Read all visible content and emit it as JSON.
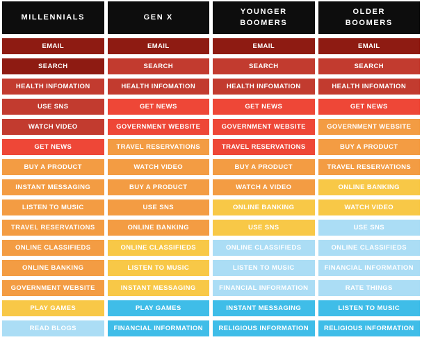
{
  "palette": {
    "header_bg": "#0d0d0d",
    "cell_text": "#ffffff",
    "page_bg": "#ffffff",
    "levels": {
      "dark_red": "#8e1b12",
      "brick_red": "#c23b2f",
      "bright_red": "#ee4737",
      "orange": "#f39c43",
      "yellow": "#f8c847",
      "light_blue": "#abddf5",
      "cyan": "#3fbde8"
    }
  },
  "chart_data": {
    "type": "heatmap",
    "description": "Ranked list of online activities for four generations; cell color encodes usage level from dark red (highest) through brick red, bright red, orange, yellow, light blue, to cyan (lowest).",
    "levels_high_to_low": [
      "dark_red",
      "brick_red",
      "bright_red",
      "orange",
      "yellow",
      "light_blue",
      "cyan"
    ],
    "categories": [
      "MILLENNIALS",
      "GEN X",
      "YOUNGER BOOMERS",
      "OLDER BOOMERS"
    ],
    "columns": [
      {
        "header": "MILLENNIALS",
        "header_lines": [
          "MILLENNIALS"
        ],
        "cells": [
          {
            "rank": 1,
            "label": "EMAIL",
            "level": "dark_red"
          },
          {
            "rank": 2,
            "label": "SEARCH",
            "level": "dark_red"
          },
          {
            "rank": 3,
            "label": "HEALTH INFOMATION",
            "level": "brick_red"
          },
          {
            "rank": 4,
            "label": "USE SNS",
            "level": "brick_red"
          },
          {
            "rank": 5,
            "label": "WATCH VIDEO",
            "level": "brick_red"
          },
          {
            "rank": 6,
            "label": "GET NEWS",
            "level": "bright_red"
          },
          {
            "rank": 7,
            "label": "BUY A PRODUCT",
            "level": "orange"
          },
          {
            "rank": 8,
            "label": "INSTANT MESSAGING",
            "level": "orange"
          },
          {
            "rank": 9,
            "label": "LISTEN TO MUSIC",
            "level": "orange"
          },
          {
            "rank": 10,
            "label": "TRAVEL RESERVATIONS",
            "level": "orange"
          },
          {
            "rank": 11,
            "label": "ONLINE CLASSIFIEDS",
            "level": "orange"
          },
          {
            "rank": 12,
            "label": "ONLINE BANKING",
            "level": "orange"
          },
          {
            "rank": 13,
            "label": "GOVERNMENT WEBSITE",
            "level": "orange"
          },
          {
            "rank": 14,
            "label": "PLAY GAMES",
            "level": "yellow"
          },
          {
            "rank": 15,
            "label": "READ BLOGS",
            "level": "light_blue"
          }
        ]
      },
      {
        "header": "GEN X",
        "header_lines": [
          "GEN X"
        ],
        "cells": [
          {
            "rank": 1,
            "label": "EMAIL",
            "level": "dark_red"
          },
          {
            "rank": 2,
            "label": "SEARCH",
            "level": "brick_red"
          },
          {
            "rank": 3,
            "label": "HEALTH INFOMATION",
            "level": "brick_red"
          },
          {
            "rank": 4,
            "label": "GET NEWS",
            "level": "bright_red"
          },
          {
            "rank": 5,
            "label": "GOVERNMENT WEBSITE",
            "level": "bright_red"
          },
          {
            "rank": 6,
            "label": "TRAVEL RESERVATIONS",
            "level": "orange"
          },
          {
            "rank": 7,
            "label": "WATCH VIDEO",
            "level": "orange"
          },
          {
            "rank": 8,
            "label": "BUY A PRODUCT",
            "level": "orange"
          },
          {
            "rank": 9,
            "label": "USE SNS",
            "level": "orange"
          },
          {
            "rank": 10,
            "label": "ONLINE BANKING",
            "level": "orange"
          },
          {
            "rank": 11,
            "label": "ONLINE CLASSIFIEDS",
            "level": "yellow"
          },
          {
            "rank": 12,
            "label": "LISTEN TO MUSIC",
            "level": "yellow"
          },
          {
            "rank": 13,
            "label": "INSTANT MESSAGING",
            "level": "yellow"
          },
          {
            "rank": 14,
            "label": "PLAY GAMES",
            "level": "cyan"
          },
          {
            "rank": 15,
            "label": "FINANCIAL INFORMATION",
            "level": "cyan"
          }
        ]
      },
      {
        "header": "YOUNGER BOOMERS",
        "header_lines": [
          "YOUNGER",
          "BOOMERS"
        ],
        "cells": [
          {
            "rank": 1,
            "label": "EMAIL",
            "level": "dark_red"
          },
          {
            "rank": 2,
            "label": "SEARCH",
            "level": "brick_red"
          },
          {
            "rank": 3,
            "label": "HEALTH INFOMATION",
            "level": "brick_red"
          },
          {
            "rank": 4,
            "label": "GET NEWS",
            "level": "bright_red"
          },
          {
            "rank": 5,
            "label": "GOVERNMENT WEBSITE",
            "level": "bright_red"
          },
          {
            "rank": 6,
            "label": "TRAVEL RESERVATIONS",
            "level": "bright_red"
          },
          {
            "rank": 7,
            "label": "BUY A PRODUCT",
            "level": "orange"
          },
          {
            "rank": 8,
            "label": "WATCH A VIDEO",
            "level": "orange"
          },
          {
            "rank": 9,
            "label": "ONLINE BANKING",
            "level": "yellow"
          },
          {
            "rank": 10,
            "label": "USE SNS",
            "level": "yellow"
          },
          {
            "rank": 11,
            "label": "ONLINE CLASSIFIEDS",
            "level": "light_blue"
          },
          {
            "rank": 12,
            "label": "LISTEN TO MUSIC",
            "level": "light_blue"
          },
          {
            "rank": 13,
            "label": "FINANCIAL INFORMATION",
            "level": "light_blue"
          },
          {
            "rank": 14,
            "label": "INSTANT MESSAGING",
            "level": "cyan"
          },
          {
            "rank": 15,
            "label": "RELIGIOUS INFORMATION",
            "level": "cyan"
          }
        ]
      },
      {
        "header": "OLDER BOOMERS",
        "header_lines": [
          "OLDER",
          "BOOMERS"
        ],
        "cells": [
          {
            "rank": 1,
            "label": "EMAIL",
            "level": "dark_red"
          },
          {
            "rank": 2,
            "label": "SEARCH",
            "level": "brick_red"
          },
          {
            "rank": 3,
            "label": "HEALTH INFOMATION",
            "level": "brick_red"
          },
          {
            "rank": 4,
            "label": "GET NEWS",
            "level": "bright_red"
          },
          {
            "rank": 5,
            "label": "GOVERNMENT WEBSITE",
            "level": "orange"
          },
          {
            "rank": 6,
            "label": "BUY A PRODUCT",
            "level": "orange"
          },
          {
            "rank": 7,
            "label": "TRAVEL RESERVATIONS",
            "level": "orange"
          },
          {
            "rank": 8,
            "label": "ONLINE BANKING",
            "level": "yellow"
          },
          {
            "rank": 9,
            "label": "WATCH VIDEO",
            "level": "yellow"
          },
          {
            "rank": 10,
            "label": "USE SNS",
            "level": "light_blue"
          },
          {
            "rank": 11,
            "label": "ONLINE CLASSIFIEDS",
            "level": "light_blue"
          },
          {
            "rank": 12,
            "label": "FINANCIAL INFORMATION",
            "level": "light_blue"
          },
          {
            "rank": 13,
            "label": "RATE THINGS",
            "level": "light_blue"
          },
          {
            "rank": 14,
            "label": "LISTEN TO MUSIC",
            "level": "cyan"
          },
          {
            "rank": 15,
            "label": "RELIGIOUS INFORMATION",
            "level": "cyan"
          }
        ]
      }
    ]
  }
}
